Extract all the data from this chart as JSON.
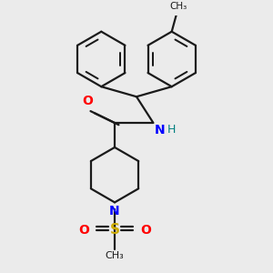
{
  "bg_color": "#ebebeb",
  "bond_color": "#1a1a1a",
  "bond_width": 1.6,
  "atom_colors": {
    "O": "#ff0000",
    "N": "#0000ff",
    "S": "#ccaa00",
    "H": "#008080",
    "C": "#1a1a1a"
  },
  "font_size_atom": 10,
  "font_size_small": 8
}
